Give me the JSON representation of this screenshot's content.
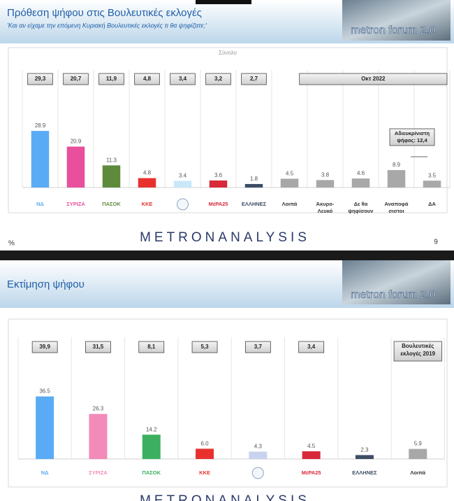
{
  "chart_data": [
    {
      "type": "bar",
      "title": "Πρόθεση ψήφου στις Βουλευτικές εκλογές",
      "subtitle": "'Και αν είχαμε την επόμενη Κυριακή Βουλευτικές εκλογές τι θα ψηφίζατε;'",
      "logo": "metron forum 2.0",
      "panel_label": "Σύνολο",
      "categories": [
        "ΝΔ",
        "ΣΥΡΙΖΑ",
        "ΠΑΣΟΚ",
        "ΚΚΕ",
        null,
        "ΜέΡΑ25",
        "ΕΛΛΗΝΕΣ",
        "Λοιπά",
        "Άκυρο- Λευκό",
        "Δε θα ψηφίσουν",
        "Αναποφά σιστοι",
        "ΔΑ"
      ],
      "values": [
        28.9,
        20.9,
        11.3,
        4.8,
        3.4,
        3.6,
        1.8,
        4.5,
        3.8,
        4.6,
        8.9,
        3.5
      ],
      "colors": [
        "#5aabf5",
        "#e8509c",
        "#5e8a3c",
        "#e8312f",
        "#c8e8fa",
        "#d8283a",
        "#3d4d66",
        "#a8a8a8",
        "#a8a8a8",
        "#a8a8a8",
        "#a8a8a8",
        "#a8a8a8"
      ],
      "comparison_labels": [
        "29,3",
        "20,7",
        "11,9",
        "4,8",
        "3,4",
        "3,2",
        "2,7"
      ],
      "period": "Οκτ 2022",
      "annotation": "Αδιευκρίνιστη ψήφος: 12,4",
      "unit": "%",
      "footer": "METRONANALYSIS",
      "page_number": "9",
      "ylim": [
        0,
        40
      ]
    },
    {
      "type": "bar",
      "title": "Εκτίμηση ψήφου",
      "logo": "metron forum 2.0",
      "categories": [
        "ΝΔ",
        "ΣΥΡΙΖΑ",
        "ΠΑΣΟΚ",
        "ΚΚΕ",
        null,
        "ΜέΡΑ25",
        "ΕΛΛΗΝΕΣ",
        "Λοιπά"
      ],
      "values": [
        36.5,
        26.3,
        14.2,
        6.0,
        4.3,
        4.5,
        2.3,
        5.9
      ],
      "value_labels": [
        "36.5",
        "26.3",
        "14.2",
        "6.0",
        "4.3",
        "4.5",
        "2.3",
        "5.9"
      ],
      "colors": [
        "#5aabf5",
        "#f28bb8",
        "#3cb060",
        "#e8312f",
        "#c9d3f0",
        "#d8283a",
        "#3d4d66",
        "#a8a8a8"
      ],
      "comparison_labels": [
        "39,9",
        "31,5",
        "8,1",
        "5,3",
        "3,7",
        "3,4"
      ],
      "period": "Βουλευτικές εκλογές 2019",
      "footer": "METRONANALYSIS",
      "ylim": [
        0,
        40
      ]
    }
  ]
}
